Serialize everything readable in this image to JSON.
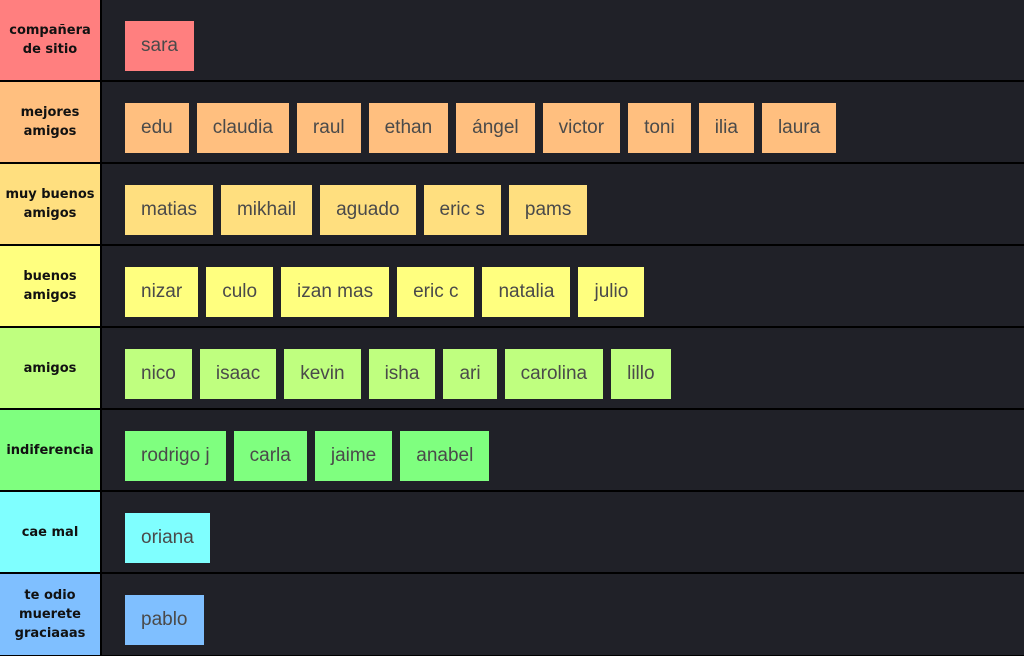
{
  "tiers": [
    {
      "label": "compañera de sitio",
      "color": "#ff7f7f",
      "items": [
        "sara"
      ]
    },
    {
      "label": "mejores amigos",
      "color": "#ffbf7f",
      "items": [
        "edu",
        "claudia",
        "raul",
        "ethan",
        "ángel",
        "victor",
        "toni",
        "ilia",
        "laura"
      ]
    },
    {
      "label": "muy buenos amigos",
      "color": "#ffdf7f",
      "items": [
        "matias",
        "mikhail",
        "aguado",
        "eric s",
        "pams"
      ]
    },
    {
      "label": "buenos amigos",
      "color": "#ffff7f",
      "items": [
        "nizar",
        "culo",
        "izan mas",
        "eric c",
        "natalia",
        "julio"
      ]
    },
    {
      "label": "amigos",
      "color": "#bfff7f",
      "items": [
        "nico",
        "isaac",
        "kevin",
        "isha",
        "ari",
        "carolina",
        "lillo"
      ]
    },
    {
      "label": "indiferencia",
      "color": "#7fff7f",
      "items": [
        "rodrigo j",
        "carla",
        "jaime",
        "anabel"
      ]
    },
    {
      "label": "cae mal",
      "color": "#7fffff",
      "items": [
        "oriana"
      ]
    },
    {
      "label": "te odio muerete graciaaas",
      "color": "#7fbfff",
      "items": [
        "pablo"
      ]
    }
  ]
}
